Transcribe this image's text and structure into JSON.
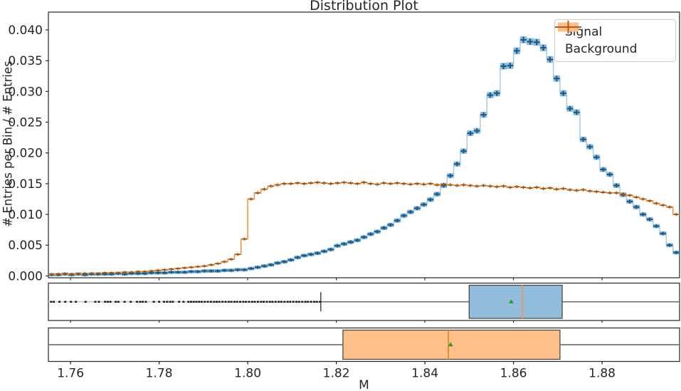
{
  "title": "Distribution Plot",
  "axes": {
    "xlabel": "M",
    "ylabel": "# Entries per Bin / # Entries",
    "xlim": [
      1.755,
      1.8975
    ],
    "ylim": [
      -0.0003,
      0.0429
    ],
    "xticks": [
      {
        "value": 1.76,
        "label": "1.76"
      },
      {
        "value": 1.78,
        "label": "1.78"
      },
      {
        "value": 1.8,
        "label": "1.80"
      },
      {
        "value": 1.82,
        "label": "1.82"
      },
      {
        "value": 1.84,
        "label": "1.84"
      },
      {
        "value": 1.86,
        "label": "1.86"
      },
      {
        "value": 1.88,
        "label": "1.88"
      }
    ],
    "yticks": [
      {
        "value": 0.0,
        "label": "0.000"
      },
      {
        "value": 0.005,
        "label": "0.005"
      },
      {
        "value": 0.01,
        "label": "0.010"
      },
      {
        "value": 0.015,
        "label": "0.015"
      },
      {
        "value": 0.02,
        "label": "0.020"
      },
      {
        "value": 0.025,
        "label": "0.025"
      },
      {
        "value": 0.03,
        "label": "0.030"
      },
      {
        "value": 0.035,
        "label": "0.035"
      },
      {
        "value": 0.04,
        "label": "0.040"
      }
    ]
  },
  "legend": {
    "items": [
      {
        "label": "Signal",
        "fill": "#8fbbd9",
        "marker": "#1d6394"
      },
      {
        "label": "Background",
        "fill": "#ffbf86",
        "marker": "#b35c12"
      }
    ]
  },
  "colors": {
    "signal_step": "#a9cbe4",
    "signal_err_fill": "rgba(31,119,180,0.5)",
    "signal_marker": "#175d8c",
    "background_step": "#f2953f",
    "background_marker": "#a1500e",
    "box_signal_fill": "#92bcdc",
    "box_background_fill": "#ffc089",
    "box_edge": "#4a4a4a",
    "median_signal": "#e9975c",
    "median_background": "#e8862f",
    "mean_marker": "#2ca02c",
    "whisker": "#6e6e6e",
    "cap": "#3a3a3a",
    "flier": "#111111",
    "centerline": "#c9c9c9",
    "spine": "#262626"
  },
  "chart_data": [
    {
      "type": "bar",
      "name": "Signal",
      "style": "step-errorbar-histogram",
      "bin_start": 1.755,
      "bin_width": 0.0015,
      "n_bins": 95,
      "values": [
        0.0002,
        0.0002,
        0.0003,
        0.0002,
        0.0003,
        0.0002,
        0.0003,
        0.0003,
        0.0003,
        0.0003,
        0.0004,
        0.0003,
        0.0004,
        0.0004,
        0.0004,
        0.0005,
        0.0005,
        0.0005,
        0.0006,
        0.0006,
        0.0006,
        0.0007,
        0.0007,
        0.0008,
        0.0008,
        0.0008,
        0.0009,
        0.0009,
        0.001,
        0.001,
        0.0012,
        0.0014,
        0.0016,
        0.0018,
        0.0021,
        0.0023,
        0.0026,
        0.003,
        0.0033,
        0.0035,
        0.0037,
        0.004,
        0.0043,
        0.0049,
        0.0052,
        0.0055,
        0.0058,
        0.0063,
        0.0068,
        0.0072,
        0.0078,
        0.0083,
        0.009,
        0.0098,
        0.0104,
        0.011,
        0.0116,
        0.0124,
        0.0133,
        0.0147,
        0.0163,
        0.0182,
        0.0203,
        0.0232,
        0.0236,
        0.0262,
        0.0294,
        0.0297,
        0.0341,
        0.0342,
        0.0366,
        0.0384,
        0.0381,
        0.038,
        0.0371,
        0.0352,
        0.0321,
        0.0297,
        0.0272,
        0.0266,
        0.0222,
        0.021,
        0.0193,
        0.0173,
        0.0165,
        0.0147,
        0.0132,
        0.0121,
        0.0112,
        0.01,
        0.0092,
        0.0081,
        0.0069,
        0.005,
        0.0038
      ]
    },
    {
      "type": "bar",
      "name": "Background",
      "style": "step-errorbar-histogram",
      "bin_start": 1.755,
      "bin_width": 0.0015,
      "n_bins": 95,
      "values": [
        0.0002,
        0.0003,
        0.0003,
        0.0003,
        0.0003,
        0.0004,
        0.0004,
        0.0004,
        0.0005,
        0.0005,
        0.0005,
        0.0006,
        0.0006,
        0.0007,
        0.0007,
        0.0008,
        0.0009,
        0.001,
        0.0011,
        0.0012,
        0.0013,
        0.0014,
        0.0015,
        0.0016,
        0.0018,
        0.002,
        0.0023,
        0.0027,
        0.0035,
        0.006,
        0.0125,
        0.0135,
        0.0141,
        0.0146,
        0.0148,
        0.015,
        0.015,
        0.0151,
        0.015,
        0.0151,
        0.0152,
        0.0151,
        0.015,
        0.0151,
        0.0152,
        0.0151,
        0.015,
        0.0152,
        0.015,
        0.0149,
        0.0151,
        0.015,
        0.0151,
        0.015,
        0.0149,
        0.015,
        0.0149,
        0.015,
        0.0148,
        0.0149,
        0.0148,
        0.0147,
        0.0148,
        0.0147,
        0.0146,
        0.0147,
        0.0146,
        0.0145,
        0.0146,
        0.0144,
        0.0145,
        0.0144,
        0.0143,
        0.0144,
        0.0142,
        0.0143,
        0.0141,
        0.0142,
        0.014,
        0.0139,
        0.014,
        0.0138,
        0.0137,
        0.0136,
        0.0135,
        0.0135,
        0.0133,
        0.0131,
        0.0128,
        0.0125,
        0.0122,
        0.0118,
        0.0115,
        0.0112,
        0.01
      ]
    },
    {
      "type": "boxplot",
      "name": "Signal",
      "q1": 1.85,
      "median": 1.862,
      "q3": 1.871,
      "mean": 1.8595,
      "whisker_low": 1.8165,
      "whisker_low_capped": true,
      "whisker_high": 1.8975,
      "whisker_high_capped": false,
      "fliers": [
        1.7556,
        1.7562,
        1.7575,
        1.7588,
        1.7601,
        1.7612,
        1.7634,
        1.7656,
        1.7664,
        1.7678,
        1.7684,
        1.769,
        1.7702,
        1.7708,
        1.7722,
        1.7736,
        1.775,
        1.7757,
        1.7763,
        1.777,
        1.7788,
        1.78,
        1.7811,
        1.7818,
        1.7825,
        1.7831,
        1.7845,
        1.7855,
        1.7866,
        1.7872,
        1.7878,
        1.7884,
        1.789,
        1.7896,
        1.7903,
        1.791,
        1.7917,
        1.7924,
        1.793,
        1.7936,
        1.7943,
        1.795,
        1.7957,
        1.7963,
        1.797,
        1.7976,
        1.7983,
        1.799,
        1.7996,
        1.8003,
        1.801,
        1.8016,
        1.8023,
        1.803,
        1.8036,
        1.8043,
        1.805,
        1.8056,
        1.8063,
        1.807,
        1.8076,
        1.8083,
        1.809,
        1.8096,
        1.8103,
        1.811,
        1.8116,
        1.8123,
        1.813,
        1.8136,
        1.8143,
        1.815,
        1.8156,
        1.8163
      ]
    },
    {
      "type": "boxplot",
      "name": "Background",
      "q1": 1.8215,
      "median": 1.8453,
      "q3": 1.8705,
      "mean": 1.8458,
      "whisker_low": 1.755,
      "whisker_low_capped": false,
      "whisker_high": 1.8975,
      "whisker_high_capped": false,
      "fliers": []
    }
  ]
}
